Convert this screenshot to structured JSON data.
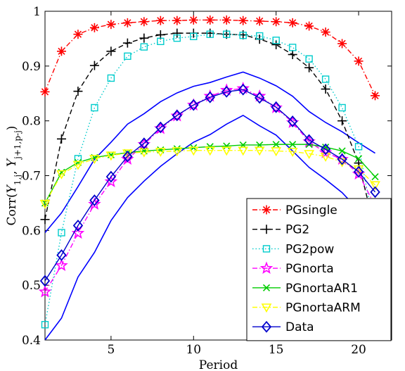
{
  "chart_data": {
    "type": "line",
    "xlabel": "Period",
    "ylabel": "Corr(Y_{1,j}, Y_{j+1,p-j})",
    "xlim": [
      1,
      22
    ],
    "ylim": [
      0.4,
      1.0
    ],
    "xticks": [
      5,
      10,
      15,
      20
    ],
    "yticks": [
      0.4,
      0.5,
      0.6,
      0.7,
      0.8,
      0.9,
      1.0
    ],
    "grid": false,
    "legend_position": "lower-right",
    "x": [
      1,
      2,
      3,
      4,
      5,
      6,
      7,
      8,
      9,
      10,
      11,
      12,
      13,
      14,
      15,
      16,
      17,
      18,
      19,
      20,
      21
    ],
    "series": [
      {
        "name": "PGsingle",
        "color": "#ff0000",
        "marker": "asterisk",
        "dash": "dashdot",
        "values": [
          0.853,
          0.927,
          0.958,
          0.97,
          0.976,
          0.979,
          0.981,
          0.983,
          0.983,
          0.984,
          0.984,
          0.984,
          0.983,
          0.982,
          0.981,
          0.979,
          0.973,
          0.962,
          0.941,
          0.909,
          0.846
        ]
      },
      {
        "name": "PG2",
        "color": "#000000",
        "marker": "plus",
        "dash": "dashed",
        "values": [
          0.62,
          0.767,
          0.854,
          0.901,
          0.927,
          0.942,
          0.951,
          0.957,
          0.96,
          0.96,
          0.96,
          0.958,
          0.957,
          0.949,
          0.939,
          0.921,
          0.897,
          0.858,
          0.8,
          0.723,
          0.6
        ]
      },
      {
        "name": "PG2pow",
        "color": "#00cccc",
        "marker": "square",
        "dash": "dotted",
        "values": [
          0.428,
          0.596,
          0.731,
          0.824,
          0.878,
          0.918,
          0.935,
          0.945,
          0.951,
          0.954,
          0.958,
          0.958,
          0.956,
          0.955,
          0.947,
          0.934,
          0.913,
          0.876,
          0.824,
          0.753,
          0.598
        ]
      },
      {
        "name": "PGnorta",
        "color": "#ff00ff",
        "marker": "star",
        "dash": "dashdot",
        "values": [
          0.488,
          0.536,
          0.595,
          0.648,
          0.689,
          0.73,
          0.757,
          0.786,
          0.809,
          0.829,
          0.845,
          0.856,
          0.859,
          0.845,
          0.824,
          0.797,
          0.762,
          0.742,
          0.73,
          0.703,
          0.645
        ]
      },
      {
        "name": "PGnortaAR1",
        "color": "#00cc00",
        "marker": "x",
        "dash": "solid",
        "values": [
          0.65,
          0.706,
          0.724,
          0.733,
          0.738,
          0.742,
          0.745,
          0.747,
          0.749,
          0.751,
          0.753,
          0.754,
          0.756,
          0.756,
          0.757,
          0.757,
          0.757,
          0.752,
          0.745,
          0.731,
          0.698
        ]
      },
      {
        "name": "PGnortaARM",
        "color": "#ffff00",
        "marker": "triangle-down",
        "dash": "dashdot",
        "values": [
          0.649,
          0.703,
          0.72,
          0.731,
          0.737,
          0.741,
          0.743,
          0.744,
          0.745,
          0.746,
          0.746,
          0.746,
          0.746,
          0.746,
          0.745,
          0.744,
          0.74,
          0.735,
          0.725,
          0.712,
          0.683
        ]
      },
      {
        "name": "Data",
        "color": "#0000cc",
        "marker": "diamond",
        "dash": "solid",
        "values": [
          0.508,
          0.555,
          0.609,
          0.655,
          0.698,
          0.735,
          0.759,
          0.788,
          0.81,
          0.829,
          0.843,
          0.853,
          0.857,
          0.842,
          0.825,
          0.799,
          0.765,
          0.748,
          0.73,
          0.707,
          0.67
        ]
      }
    ],
    "bands": [
      {
        "color": "#0000ff",
        "upper": [
          0.596,
          0.632,
          0.68,
          0.73,
          0.761,
          0.794,
          0.813,
          0.835,
          0.851,
          0.863,
          0.87,
          0.88,
          0.889,
          0.878,
          0.864,
          0.845,
          0.817,
          0.797,
          0.78,
          0.76,
          0.741
        ],
        "lower": [
          0.4,
          0.44,
          0.515,
          0.56,
          0.618,
          0.66,
          0.69,
          0.717,
          0.74,
          0.761,
          0.775,
          0.794,
          0.81,
          0.791,
          0.774,
          0.745,
          0.715,
          0.693,
          0.669,
          0.637,
          0.566
        ]
      }
    ]
  }
}
